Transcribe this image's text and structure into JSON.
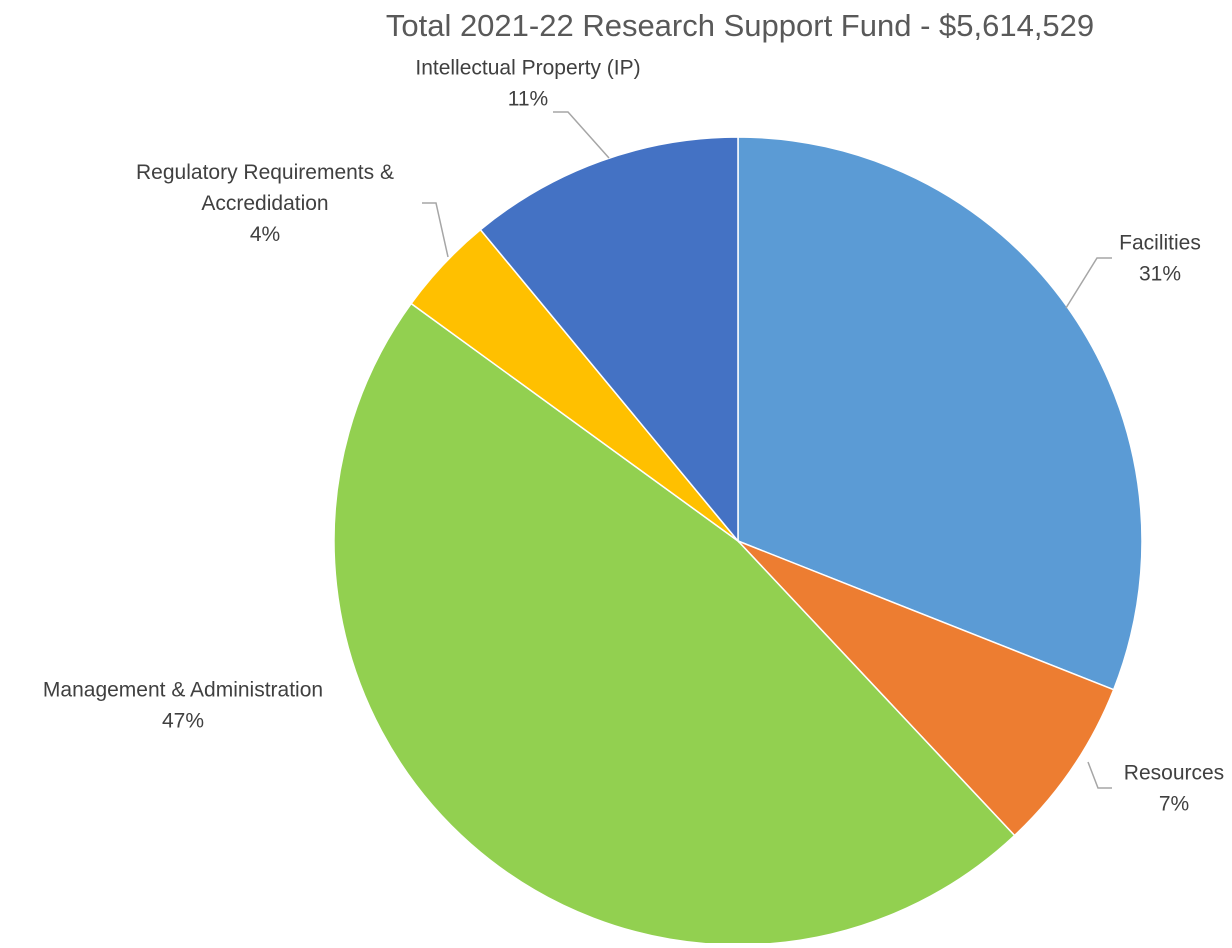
{
  "chart_data": {
    "type": "pie",
    "title": "Total 2021-22 Research Support Fund - $5,614,529",
    "start_angle_deg": 0,
    "direction": "clockwise",
    "slices": [
      {
        "label": "Facilities",
        "value": 31,
        "value_label": "31%",
        "color": "#5B9BD5"
      },
      {
        "label": "Resources",
        "value": 7,
        "value_label": "7%",
        "color": "#ED7D31"
      },
      {
        "label": "Management & Administration",
        "value": 47,
        "value_label": "47%",
        "color": "#92D050"
      },
      {
        "label": "Regulatory Requirements & Accredidation",
        "value": 4,
        "value_label": "4%",
        "color": "#FFC000"
      },
      {
        "label": "Intellectual Property (IP)",
        "value": 11,
        "value_label": "11%",
        "color": "#4472C4"
      }
    ],
    "legend": "none",
    "data_labels": "outside with leader lines"
  }
}
